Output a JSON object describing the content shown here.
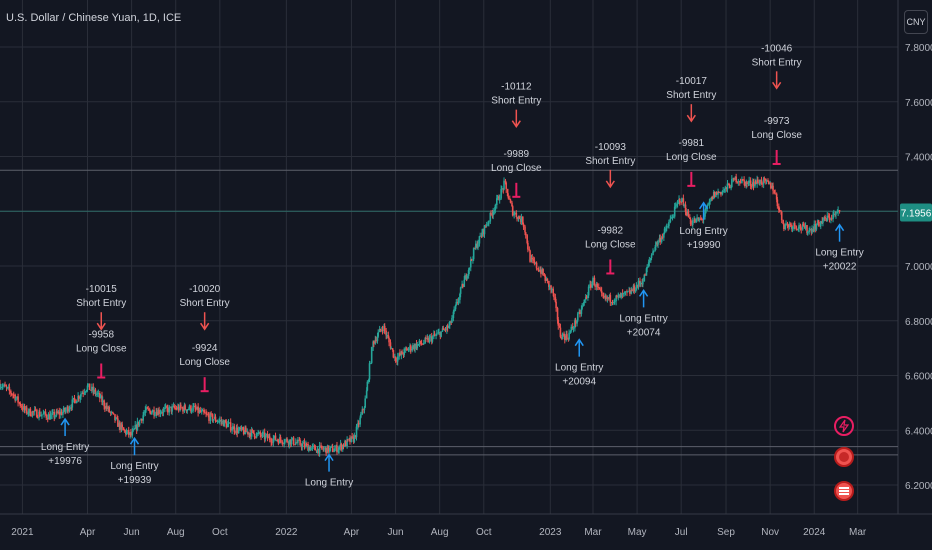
{
  "header": {
    "title": "U.S. Dollar / Chinese Yuan, 1D, ICE",
    "currency_button": "CNY"
  },
  "colors": {
    "background": "#131722",
    "grid": "#2a2e39",
    "text": "#d1d4dc",
    "up": "#26a69a",
    "down": "#ef5350",
    "long_entry": "#2196f3",
    "short_entry": "#ef5350",
    "close": "#e91e63",
    "price_badge": "#1e8e83"
  },
  "chart_data": {
    "type": "candlestick",
    "x_ticks": [
      "2021",
      "Apr",
      "Jun",
      "Aug",
      "Oct",
      "2022",
      "Apr",
      "Jun",
      "Aug",
      "Oct",
      "2023",
      "Mar",
      "May",
      "Jul",
      "Sep",
      "Nov",
      "2024",
      "Mar"
    ],
    "y_ticks": [
      "7.8000",
      "7.6000",
      "7.4000",
      "7.2000",
      "7.0000",
      "6.8000",
      "6.6000",
      "6.4000",
      "6.2000"
    ],
    "ylim": [
      6.16,
      7.86
    ],
    "last_price": "7.1956",
    "price_path": [
      [
        "2020-12-01",
        6.57
      ],
      [
        "2020-12-20",
        6.53
      ],
      [
        "2021-01-05",
        6.47
      ],
      [
        "2021-01-25",
        6.46
      ],
      [
        "2021-02-10",
        6.45
      ],
      [
        "2021-03-01",
        6.47
      ],
      [
        "2021-03-15",
        6.51
      ],
      [
        "2021-04-01",
        6.56
      ],
      [
        "2021-04-15",
        6.53
      ],
      [
        "2021-05-01",
        6.47
      ],
      [
        "2021-05-20",
        6.4
      ],
      [
        "2021-06-01",
        6.38
      ],
      [
        "2021-06-20",
        6.47
      ],
      [
        "2021-07-10",
        6.47
      ],
      [
        "2021-08-01",
        6.48
      ],
      [
        "2021-08-25",
        6.48
      ],
      [
        "2021-09-15",
        6.45
      ],
      [
        "2021-10-05",
        6.43
      ],
      [
        "2021-10-25",
        6.4
      ],
      [
        "2021-11-15",
        6.39
      ],
      [
        "2021-12-10",
        6.37
      ],
      [
        "2022-01-10",
        6.36
      ],
      [
        "2022-02-10",
        6.33
      ],
      [
        "2022-03-10",
        6.33
      ],
      [
        "2022-04-05",
        6.37
      ],
      [
        "2022-04-20",
        6.5
      ],
      [
        "2022-05-01",
        6.72
      ],
      [
        "2022-05-15",
        6.78
      ],
      [
        "2022-06-01",
        6.66
      ],
      [
        "2022-06-20",
        6.7
      ],
      [
        "2022-07-10",
        6.72
      ],
      [
        "2022-07-30",
        6.75
      ],
      [
        "2022-08-15",
        6.78
      ],
      [
        "2022-09-01",
        6.92
      ],
      [
        "2022-09-20",
        7.07
      ],
      [
        "2022-10-10",
        7.18
      ],
      [
        "2022-10-30",
        7.3
      ],
      [
        "2022-11-10",
        7.2
      ],
      [
        "2022-11-25",
        7.16
      ],
      [
        "2022-12-05",
        7.02
      ],
      [
        "2022-12-20",
        6.98
      ],
      [
        "2023-01-05",
        6.9
      ],
      [
        "2023-01-15",
        6.75
      ],
      [
        "2023-01-25",
        6.74
      ],
      [
        "2023-02-10",
        6.82
      ],
      [
        "2023-03-01",
        6.95
      ],
      [
        "2023-03-15",
        6.88
      ],
      [
        "2023-04-01",
        6.88
      ],
      [
        "2023-04-20",
        6.9
      ],
      [
        "2023-05-10",
        6.95
      ],
      [
        "2023-05-25",
        7.07
      ],
      [
        "2023-06-10",
        7.13
      ],
      [
        "2023-06-30",
        7.25
      ],
      [
        "2023-07-15",
        7.16
      ],
      [
        "2023-07-30",
        7.17
      ],
      [
        "2023-08-15",
        7.26
      ],
      [
        "2023-09-01",
        7.28
      ],
      [
        "2023-09-15",
        7.32
      ],
      [
        "2023-10-01",
        7.3
      ],
      [
        "2023-10-20",
        7.31
      ],
      [
        "2023-11-05",
        7.29
      ],
      [
        "2023-11-20",
        7.15
      ],
      [
        "2023-12-05",
        7.15
      ],
      [
        "2023-12-25",
        7.13
      ],
      [
        "2024-01-10",
        7.16
      ],
      [
        "2024-01-25",
        7.18
      ],
      [
        "2024-02-05",
        7.1956
      ]
    ],
    "signals": [
      {
        "type": "long_entry",
        "date": "2021-03-01",
        "price": 6.43,
        "lines": [
          "Long Entry",
          "+19976"
        ]
      },
      {
        "type": "short_entry",
        "date": "2021-04-20",
        "price": 6.78,
        "lines": [
          "-10015",
          "Short Entry"
        ]
      },
      {
        "type": "long_close",
        "date": "2021-04-20",
        "price": 6.6,
        "lines": [
          "-9958",
          "Long Close"
        ]
      },
      {
        "type": "long_entry",
        "date": "2021-06-05",
        "price": 6.36,
        "lines": [
          "Long Entry",
          "+19939"
        ]
      },
      {
        "type": "short_entry",
        "date": "2021-09-10",
        "price": 6.78,
        "lines": [
          "-10020",
          "Short Entry"
        ]
      },
      {
        "type": "long_close",
        "date": "2021-09-10",
        "price": 6.55,
        "lines": [
          "-9924",
          "Long Close"
        ]
      },
      {
        "type": "long_entry",
        "date": "2022-03-01",
        "price": 6.3,
        "lines": [
          "Long Entry"
        ]
      },
      {
        "type": "short_entry",
        "date": "2022-11-15",
        "price": 7.52,
        "lines": [
          "-10112",
          "Short Entry"
        ]
      },
      {
        "type": "long_close",
        "date": "2022-11-15",
        "price": 7.26,
        "lines": [
          "-9989",
          "Long Close"
        ]
      },
      {
        "type": "long_entry",
        "date": "2023-02-10",
        "price": 6.72,
        "lines": [
          "Long Entry",
          "+20094"
        ]
      },
      {
        "type": "short_entry",
        "date": "2023-03-25",
        "price": 7.3,
        "lines": [
          "-10093",
          "Short Entry"
        ]
      },
      {
        "type": "long_close",
        "date": "2023-03-25",
        "price": 6.98,
        "lines": [
          "-9982",
          "Long Close"
        ]
      },
      {
        "type": "long_entry",
        "date": "2023-05-10",
        "price": 6.9,
        "lines": [
          "Long Entry",
          "+20074"
        ]
      },
      {
        "type": "short_entry",
        "date": "2023-07-15",
        "price": 7.54,
        "lines": [
          "-10017",
          "Short Entry"
        ]
      },
      {
        "type": "long_close",
        "date": "2023-07-15",
        "price": 7.3,
        "lines": [
          "-9981",
          "Long Close"
        ]
      },
      {
        "type": "long_entry",
        "date": "2023-08-01",
        "price": 7.22,
        "lines": [
          "Long Entry",
          "+19990"
        ]
      },
      {
        "type": "short_entry",
        "date": "2023-11-10",
        "price": 7.66,
        "lines": [
          "-10046",
          "Short Entry"
        ]
      },
      {
        "type": "long_close",
        "date": "2023-11-10",
        "price": 7.38,
        "lines": [
          "-9973",
          "Long Close"
        ]
      },
      {
        "type": "long_entry",
        "date": "2024-02-05",
        "price": 7.14,
        "lines": [
          "Long Entry",
          "+20022"
        ]
      }
    ],
    "horizontal_lines": [
      7.35,
      7.2,
      6.34,
      6.31
    ]
  },
  "side_buttons": [
    {
      "name": "lightning-icon",
      "color": "#e91e63"
    },
    {
      "name": "record-icon",
      "color": "#ef5350"
    },
    {
      "name": "flag-icon",
      "color": "#ef5350"
    }
  ]
}
